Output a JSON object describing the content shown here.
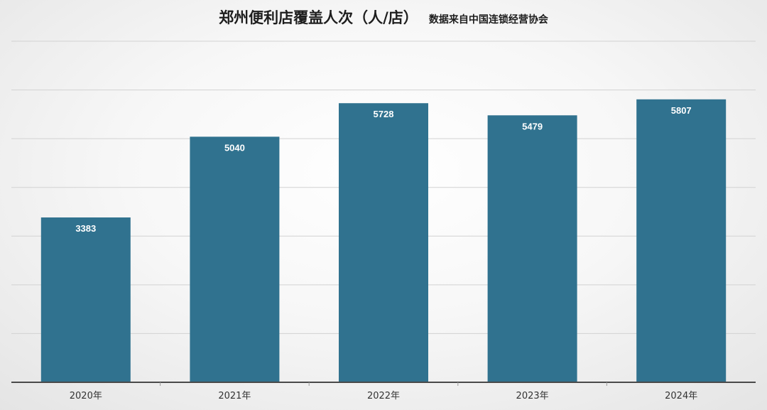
{
  "chart_data": {
    "type": "bar",
    "title": "郑州便利店覆盖人次（人/店）",
    "subtitle": "数据来自中国连锁经营协会",
    "categories": [
      "2020年",
      "2021年",
      "2022年",
      "2023年",
      "2024年"
    ],
    "values": [
      3383,
      5040,
      5728,
      5479,
      5807
    ],
    "ylim": [
      0,
      7000
    ],
    "y_gridline_step": 1000,
    "y_tick_labels_visible": false,
    "grid": true,
    "legend": "none",
    "data_labels": "inside-top",
    "colors": {
      "bar": "#30728f",
      "label": "#ffffff",
      "grid": "#d2d2d2",
      "axis": "#4a4a4a"
    }
  }
}
